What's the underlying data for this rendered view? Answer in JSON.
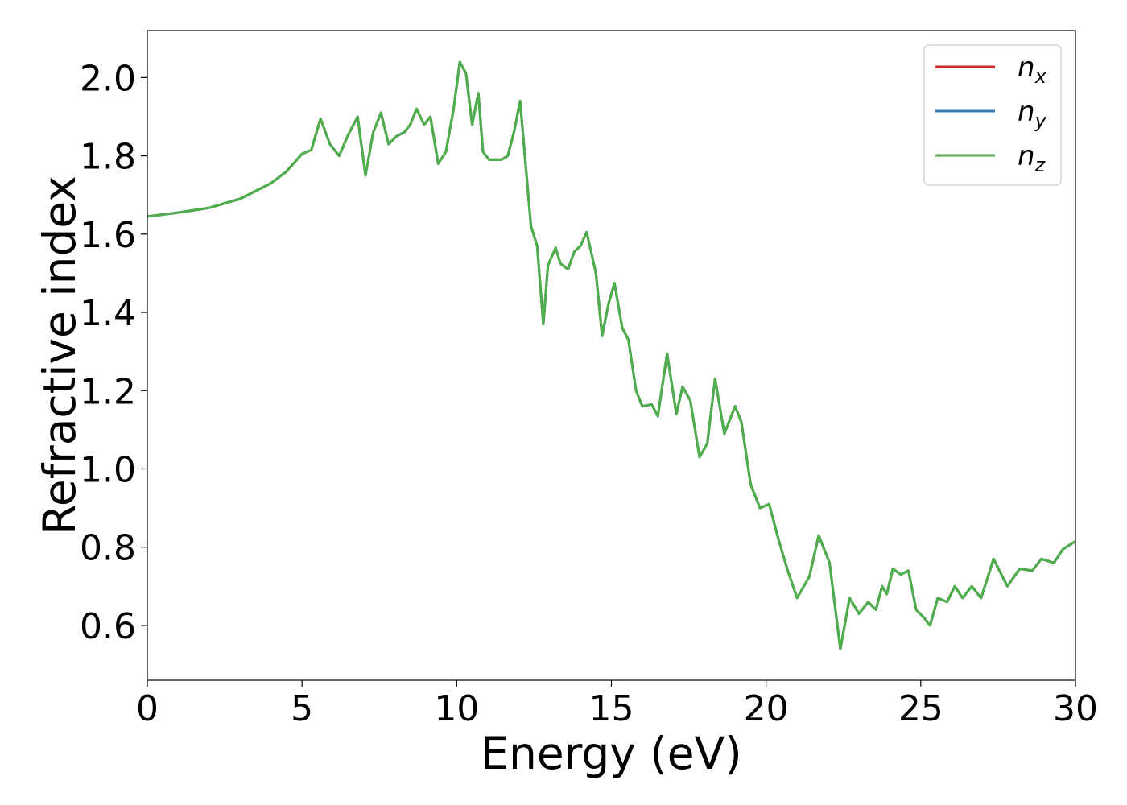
{
  "chart_data": {
    "type": "line",
    "title": "",
    "xlabel": "Energy (eV)",
    "ylabel": "Refractive index",
    "xlim": [
      0,
      30
    ],
    "ylim": [
      0.46,
      2.12
    ],
    "xticks": [
      0,
      5,
      10,
      15,
      20,
      25,
      30
    ],
    "xtick_labels": [
      "0",
      "5",
      "10",
      "15",
      "20",
      "25",
      "30"
    ],
    "yticks": [
      0.6,
      0.8,
      1.0,
      1.2,
      1.4,
      1.6,
      1.8,
      2.0
    ],
    "ytick_labels": [
      "0.6",
      "0.8",
      "1.0",
      "1.2",
      "1.4",
      "1.6",
      "1.8",
      "2.0"
    ],
    "grid": false,
    "legend_position": "top-right",
    "series": [
      {
        "name": "n_x",
        "label_main": "n",
        "label_sub": "x",
        "color": "#d62728",
        "x": [
          0,
          1,
          2,
          3,
          4,
          4.5,
          5,
          5.3,
          5.6,
          5.9,
          6.2,
          6.5,
          6.8,
          7.05,
          7.3,
          7.55,
          7.8,
          8.05,
          8.3,
          8.5,
          8.7,
          8.95,
          9.15,
          9.4,
          9.65,
          9.9,
          10.1,
          10.3,
          10.5,
          10.7,
          10.85,
          11.05,
          11.25,
          11.45,
          11.65,
          11.85,
          12.05,
          12.4,
          12.6,
          12.8,
          12.95,
          13.2,
          13.35,
          13.6,
          13.8,
          14,
          14.2,
          14.5,
          14.7,
          14.9,
          15.1,
          15.35,
          15.55,
          15.8,
          16,
          16.3,
          16.5,
          16.8,
          17.1,
          17.3,
          17.55,
          17.85,
          18.1,
          18.35,
          18.65,
          19,
          19.2,
          19.5,
          19.8,
          20.1,
          20.4,
          20.7,
          21,
          21.4,
          21.7,
          22.05,
          22.4,
          22.7,
          23,
          23.3,
          23.55,
          23.75,
          23.9,
          24.1,
          24.35,
          24.6,
          24.85,
          25.1,
          25.3,
          25.55,
          25.85,
          26.1,
          26.35,
          26.65,
          26.95,
          27.35,
          27.8,
          28.2,
          28.6,
          28.9,
          29.3,
          29.6,
          30
        ],
        "y": [
          1.645,
          1.655,
          1.667,
          1.69,
          1.73,
          1.76,
          1.805,
          1.815,
          1.895,
          1.83,
          1.8,
          1.855,
          1.9,
          1.75,
          1.86,
          1.91,
          1.83,
          1.85,
          1.86,
          1.88,
          1.92,
          1.88,
          1.9,
          1.78,
          1.81,
          1.92,
          2.04,
          2.01,
          1.88,
          1.96,
          1.81,
          1.79,
          1.79,
          1.79,
          1.8,
          1.86,
          1.94,
          1.62,
          1.57,
          1.37,
          1.52,
          1.565,
          1.525,
          1.51,
          1.555,
          1.57,
          1.605,
          1.5,
          1.34,
          1.42,
          1.475,
          1.36,
          1.33,
          1.2,
          1.16,
          1.165,
          1.135,
          1.295,
          1.14,
          1.21,
          1.175,
          1.03,
          1.065,
          1.23,
          1.09,
          1.16,
          1.12,
          0.96,
          0.9,
          0.91,
          0.82,
          0.74,
          0.67,
          0.725,
          0.83,
          0.76,
          0.54,
          0.67,
          0.63,
          0.66,
          0.64,
          0.7,
          0.68,
          0.745,
          0.73,
          0.74,
          0.64,
          0.62,
          0.6,
          0.67,
          0.66,
          0.7,
          0.67,
          0.7,
          0.67,
          0.77,
          0.7,
          0.745,
          0.74,
          0.77,
          0.76,
          0.795,
          0.815
        ]
      },
      {
        "name": "n_y",
        "label_main": "n",
        "label_sub": "y",
        "color": "#377eb8",
        "x": [
          0,
          1,
          2,
          3,
          4,
          4.5,
          5,
          5.3,
          5.6,
          5.9,
          6.2,
          6.5,
          6.8,
          7.05,
          7.3,
          7.55,
          7.8,
          8.05,
          8.3,
          8.5,
          8.7,
          8.95,
          9.15,
          9.4,
          9.65,
          9.9,
          10.1,
          10.3,
          10.5,
          10.7,
          10.85,
          11.05,
          11.25,
          11.45,
          11.65,
          11.85,
          12.05,
          12.4,
          12.6,
          12.8,
          12.95,
          13.2,
          13.35,
          13.6,
          13.8,
          14,
          14.2,
          14.5,
          14.7,
          14.9,
          15.1,
          15.35,
          15.55,
          15.8,
          16,
          16.3,
          16.5,
          16.8,
          17.1,
          17.3,
          17.55,
          17.85,
          18.1,
          18.35,
          18.65,
          19,
          19.2,
          19.5,
          19.8,
          20.1,
          20.4,
          20.7,
          21,
          21.4,
          21.7,
          22.05,
          22.4,
          22.7,
          23,
          23.3,
          23.55,
          23.75,
          23.9,
          24.1,
          24.35,
          24.6,
          24.85,
          25.1,
          25.3,
          25.55,
          25.85,
          26.1,
          26.35,
          26.65,
          26.95,
          27.35,
          27.8,
          28.2,
          28.6,
          28.9,
          29.3,
          29.6,
          30
        ],
        "y": [
          1.645,
          1.655,
          1.667,
          1.69,
          1.73,
          1.76,
          1.805,
          1.815,
          1.895,
          1.83,
          1.8,
          1.855,
          1.9,
          1.75,
          1.86,
          1.91,
          1.83,
          1.85,
          1.86,
          1.88,
          1.92,
          1.88,
          1.9,
          1.78,
          1.81,
          1.92,
          2.04,
          2.01,
          1.88,
          1.96,
          1.81,
          1.79,
          1.79,
          1.79,
          1.8,
          1.86,
          1.94,
          1.62,
          1.57,
          1.37,
          1.52,
          1.565,
          1.525,
          1.51,
          1.555,
          1.57,
          1.605,
          1.5,
          1.34,
          1.42,
          1.475,
          1.36,
          1.33,
          1.2,
          1.16,
          1.165,
          1.135,
          1.295,
          1.14,
          1.21,
          1.175,
          1.03,
          1.065,
          1.23,
          1.09,
          1.16,
          1.12,
          0.96,
          0.9,
          0.91,
          0.82,
          0.74,
          0.67,
          0.725,
          0.83,
          0.76,
          0.54,
          0.67,
          0.63,
          0.66,
          0.64,
          0.7,
          0.68,
          0.745,
          0.73,
          0.74,
          0.64,
          0.62,
          0.6,
          0.67,
          0.66,
          0.7,
          0.67,
          0.7,
          0.67,
          0.77,
          0.7,
          0.745,
          0.74,
          0.77,
          0.76,
          0.795,
          0.815
        ]
      },
      {
        "name": "n_z",
        "label_main": "n",
        "label_sub": "z",
        "color": "#4daf4a",
        "x": [
          0,
          1,
          2,
          3,
          4,
          4.5,
          5,
          5.3,
          5.6,
          5.9,
          6.2,
          6.5,
          6.8,
          7.05,
          7.3,
          7.55,
          7.8,
          8.05,
          8.3,
          8.5,
          8.7,
          8.95,
          9.15,
          9.4,
          9.65,
          9.9,
          10.1,
          10.3,
          10.5,
          10.7,
          10.85,
          11.05,
          11.25,
          11.45,
          11.65,
          11.85,
          12.05,
          12.4,
          12.6,
          12.8,
          12.95,
          13.2,
          13.35,
          13.6,
          13.8,
          14,
          14.2,
          14.5,
          14.7,
          14.9,
          15.1,
          15.35,
          15.55,
          15.8,
          16,
          16.3,
          16.5,
          16.8,
          17.1,
          17.3,
          17.55,
          17.85,
          18.1,
          18.35,
          18.65,
          19,
          19.2,
          19.5,
          19.8,
          20.1,
          20.4,
          20.7,
          21,
          21.4,
          21.7,
          22.05,
          22.4,
          22.7,
          23,
          23.3,
          23.55,
          23.75,
          23.9,
          24.1,
          24.35,
          24.6,
          24.85,
          25.1,
          25.3,
          25.55,
          25.85,
          26.1,
          26.35,
          26.65,
          26.95,
          27.35,
          27.8,
          28.2,
          28.6,
          28.9,
          29.3,
          29.6,
          30
        ],
        "y": [
          1.645,
          1.655,
          1.667,
          1.69,
          1.73,
          1.76,
          1.805,
          1.815,
          1.895,
          1.83,
          1.8,
          1.855,
          1.9,
          1.75,
          1.86,
          1.91,
          1.83,
          1.85,
          1.86,
          1.88,
          1.92,
          1.88,
          1.9,
          1.78,
          1.81,
          1.92,
          2.04,
          2.01,
          1.88,
          1.96,
          1.81,
          1.79,
          1.79,
          1.79,
          1.8,
          1.86,
          1.94,
          1.62,
          1.57,
          1.37,
          1.52,
          1.565,
          1.525,
          1.51,
          1.555,
          1.57,
          1.605,
          1.5,
          1.34,
          1.42,
          1.475,
          1.36,
          1.33,
          1.2,
          1.16,
          1.165,
          1.135,
          1.295,
          1.14,
          1.21,
          1.175,
          1.03,
          1.065,
          1.23,
          1.09,
          1.16,
          1.12,
          0.96,
          0.9,
          0.91,
          0.82,
          0.74,
          0.67,
          0.725,
          0.83,
          0.76,
          0.54,
          0.67,
          0.63,
          0.66,
          0.64,
          0.7,
          0.68,
          0.745,
          0.73,
          0.74,
          0.64,
          0.62,
          0.6,
          0.67,
          0.66,
          0.7,
          0.67,
          0.7,
          0.67,
          0.77,
          0.7,
          0.745,
          0.74,
          0.77,
          0.76,
          0.795,
          0.815
        ]
      }
    ]
  }
}
